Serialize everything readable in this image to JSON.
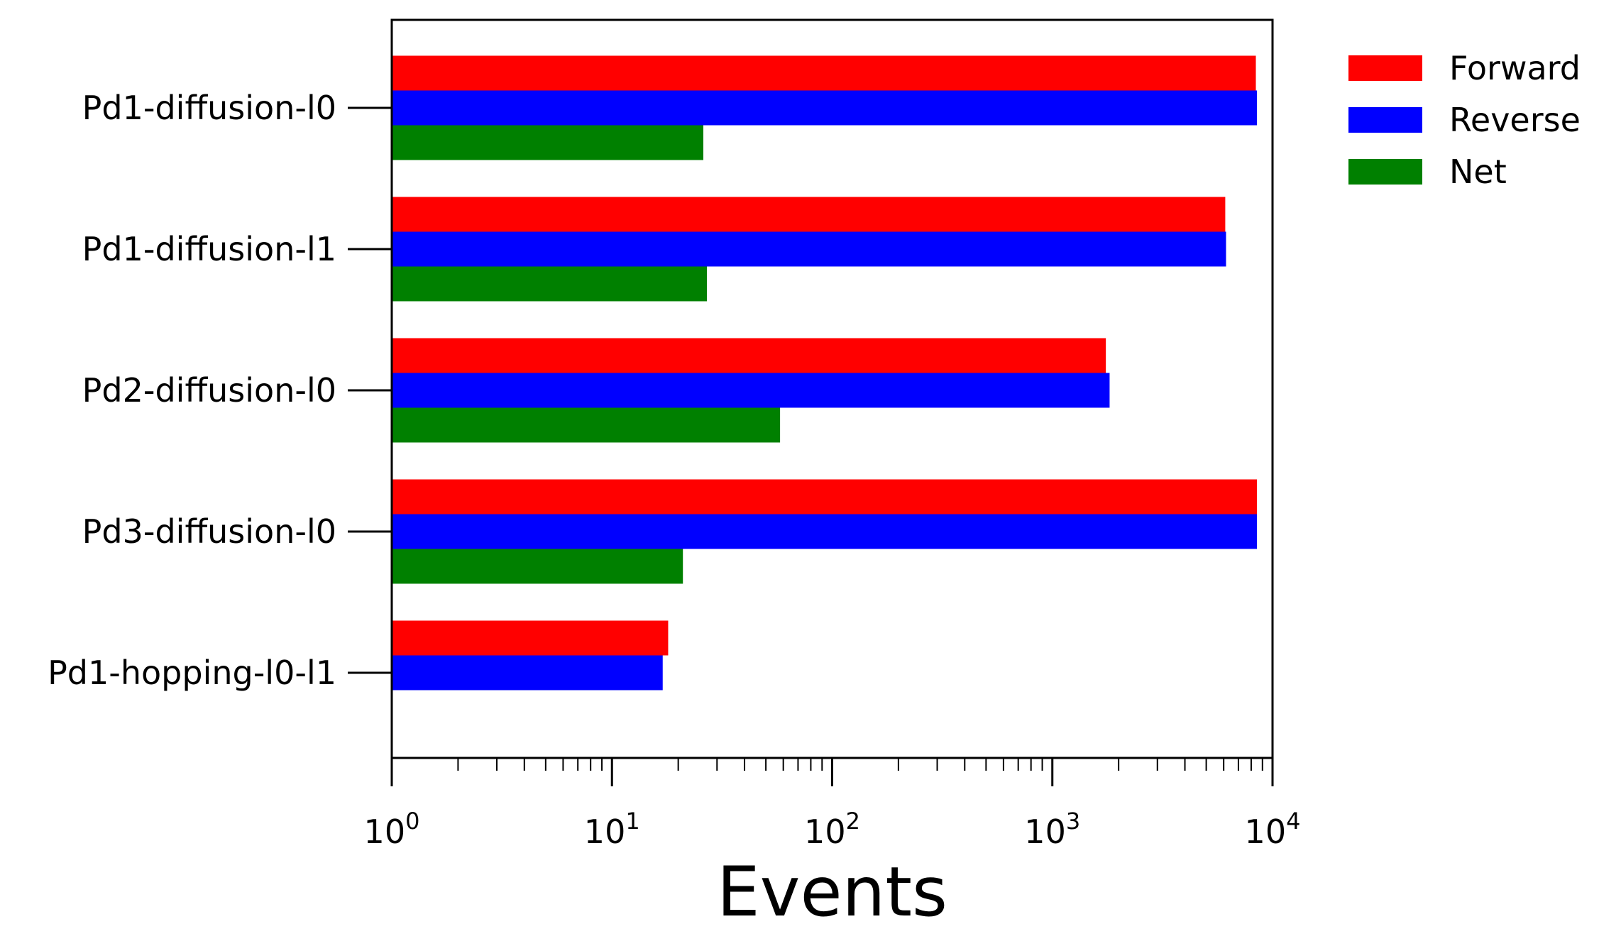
{
  "chart_data": {
    "type": "bar",
    "orientation": "horizontal",
    "categories": [
      "Pd1-diffusion-l0",
      "Pd1-diffusion-l1",
      "Pd2-diffusion-l0",
      "Pd3-diffusion-l0",
      "Pd1-hopping-l0-l1"
    ],
    "series": [
      {
        "name": "Forward",
        "color": "#ff0000",
        "values": [
          8400,
          6100,
          1750,
          8500,
          18
        ]
      },
      {
        "name": "Reverse",
        "color": "#0000ff",
        "values": [
          8500,
          6150,
          1820,
          8500,
          17
        ]
      },
      {
        "name": "Net",
        "color": "#008000",
        "values": [
          26,
          27,
          58,
          21,
          null
        ]
      }
    ],
    "xlabel": "Events",
    "xscale": "log",
    "xlim": [
      1,
      10000
    ],
    "xticks": [
      {
        "base": "10",
        "exp": "0"
      },
      {
        "base": "10",
        "exp": "1"
      },
      {
        "base": "10",
        "exp": "2"
      },
      {
        "base": "10",
        "exp": "3"
      },
      {
        "base": "10",
        "exp": "4"
      }
    ],
    "legend_position": "outside-right-top",
    "grid": false
  }
}
